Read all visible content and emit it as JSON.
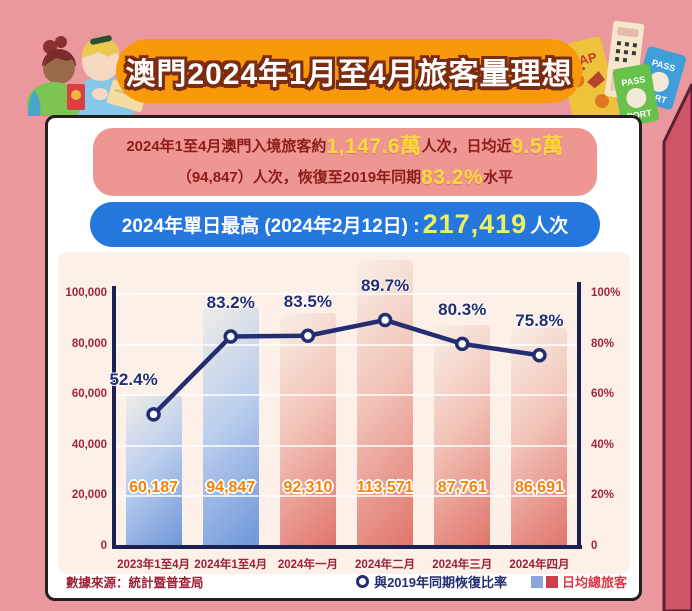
{
  "banner": {
    "title": "澳門2024年1月至4月旅客量理想",
    "bg": "#f8990b"
  },
  "summary_box": {
    "line1_prefix": "2024年1至4月澳門入境旅客約",
    "line1_highlight1": "1,147.6萬",
    "line1_mid": "人次，日均近",
    "line1_highlight2": "9.5萬",
    "line2_prefix": "（94,847）人次，恢復至2019年同期",
    "line2_highlight": "83.2%",
    "line2_suffix": "水平"
  },
  "peak_box": {
    "prefix": "2024年單日最高 (2024年2月12日) : ",
    "highlight": "217,419",
    "suffix": "人次"
  },
  "chart_data": {
    "type": "bar+line",
    "categories": [
      "2023年1至4月",
      "2024年1至4月",
      "2024年一月",
      "2024年二月",
      "2024年三月",
      "2024年四月"
    ],
    "bar_series": {
      "name": "日均總旅客",
      "values": [
        60187,
        94847,
        92310,
        113571,
        87761,
        86691
      ],
      "labels": [
        "60,187",
        "94,847",
        "92,310",
        "113,571",
        "87,761",
        "86,691"
      ],
      "colors": [
        "blue",
        "blue",
        "red",
        "red",
        "red",
        "red"
      ]
    },
    "line_series": {
      "name": "與2019年同期恢復比率",
      "values_pct": [
        52.4,
        83.2,
        83.5,
        89.7,
        80.3,
        75.8
      ],
      "labels": [
        "52.4%",
        "83.2%",
        "83.5%",
        "89.7%",
        "80.3%",
        "75.8%"
      ]
    },
    "left_axis": {
      "max": 100000,
      "ticks": [
        "100,000",
        "80,000",
        "60,000",
        "40,000",
        "20,000",
        "0"
      ]
    },
    "right_axis": {
      "max": 100,
      "ticks": [
        "100%",
        "80%",
        "60%",
        "40%",
        "20%",
        "0"
      ]
    },
    "grid": true,
    "legend_position": "bottom-right"
  },
  "footer": {
    "source": "數據來源：統計暨普查局",
    "legend_line": "與2019年同期恢復比率",
    "legend_bar": "日均總旅客"
  },
  "decor": {
    "map_label": "MAP",
    "pass_label": "PASS",
    "port_label": "PORT"
  },
  "colors": {
    "page_bg": "#ea979e",
    "ribbon": "#d05468",
    "card_border": "#241e1c",
    "summary_bg": "#ee9792",
    "summary_text": "#8c1c1c",
    "highlight_yellow": "#ffd93b",
    "peak_bg": "#2577dd",
    "peak_highlight": "#ecf25e",
    "chart_bg": "#fcf0e8",
    "axis_navy": "#1b2153",
    "line_navy": "#232d71",
    "tick_maroon": "#a12440",
    "bar_value_orange": "#f5820d"
  }
}
